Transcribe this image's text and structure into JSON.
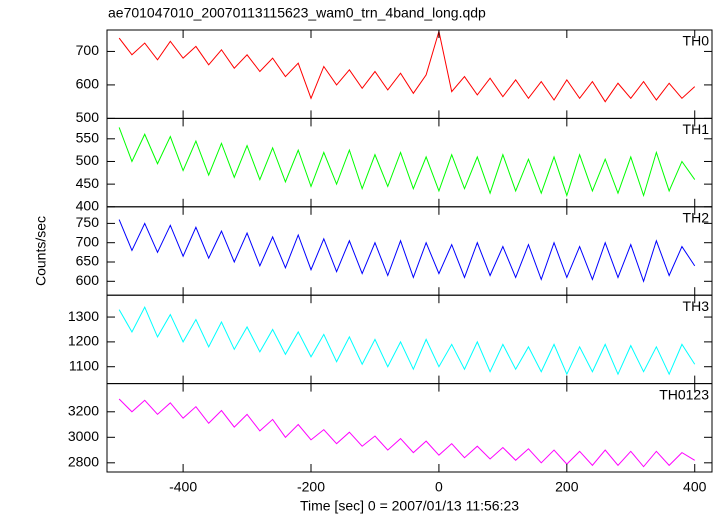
{
  "chart_data": [
    {
      "type": "line",
      "title": "ae701047010_20070113115623_wam0_trn_4band_long.qdp",
      "x": [
        -500,
        -480,
        -460,
        -440,
        -420,
        -400,
        -380,
        -360,
        -340,
        -320,
        -300,
        -280,
        -260,
        -240,
        -220,
        -200,
        -180,
        -160,
        -140,
        -120,
        -100,
        -80,
        -60,
        -40,
        -20,
        0,
        20,
        40,
        60,
        80,
        100,
        120,
        140,
        160,
        180,
        200,
        220,
        240,
        260,
        280,
        300,
        320,
        340,
        360,
        380,
        400
      ],
      "series": [
        {
          "name": "TH0",
          "color": "#ff0000",
          "values": [
            740,
            690,
            725,
            675,
            730,
            680,
            715,
            660,
            705,
            650,
            690,
            640,
            680,
            625,
            665,
            560,
            655,
            600,
            645,
            590,
            640,
            585,
            635,
            575,
            630,
            760,
            580,
            625,
            570,
            620,
            565,
            615,
            560,
            610,
            555,
            615,
            560,
            610,
            550,
            605,
            560,
            610,
            555,
            605,
            560,
            595
          ]
        }
      ],
      "xlim": [
        -519,
        427
      ],
      "ylim": [
        500,
        764
      ],
      "yticks": [
        500,
        600,
        700
      ]
    },
    {
      "type": "line",
      "x": [
        -500,
        -480,
        -460,
        -440,
        -420,
        -400,
        -380,
        -360,
        -340,
        -320,
        -300,
        -280,
        -260,
        -240,
        -220,
        -200,
        -180,
        -160,
        -140,
        -120,
        -100,
        -80,
        -60,
        -40,
        -20,
        0,
        20,
        40,
        60,
        80,
        100,
        120,
        140,
        160,
        180,
        200,
        220,
        240,
        260,
        280,
        300,
        320,
        340,
        360,
        380,
        400
      ],
      "series": [
        {
          "name": "TH1",
          "color": "#00ff00",
          "values": [
            575,
            500,
            560,
            495,
            555,
            480,
            545,
            470,
            540,
            465,
            535,
            460,
            530,
            455,
            525,
            445,
            520,
            450,
            525,
            440,
            515,
            445,
            520,
            440,
            510,
            435,
            515,
            440,
            510,
            430,
            515,
            435,
            505,
            430,
            510,
            425,
            515,
            435,
            505,
            430,
            510,
            425,
            520,
            435,
            500,
            460
          ]
        }
      ],
      "xlim": [
        -519,
        427
      ],
      "ylim": [
        400,
        595
      ],
      "yticks": [
        400,
        450,
        500,
        550
      ]
    },
    {
      "type": "line",
      "ylabel": "Counts/sec",
      "x": [
        -500,
        -480,
        -460,
        -440,
        -420,
        -400,
        -380,
        -360,
        -340,
        -320,
        -300,
        -280,
        -260,
        -240,
        -220,
        -200,
        -180,
        -160,
        -140,
        -120,
        -100,
        -80,
        -60,
        -40,
        -20,
        0,
        20,
        40,
        60,
        80,
        100,
        120,
        140,
        160,
        180,
        200,
        220,
        240,
        260,
        280,
        300,
        320,
        340,
        360,
        380,
        400
      ],
      "series": [
        {
          "name": "TH2",
          "color": "#0000ff",
          "values": [
            760,
            680,
            750,
            675,
            745,
            665,
            740,
            660,
            730,
            650,
            725,
            640,
            715,
            635,
            720,
            630,
            710,
            625,
            705,
            620,
            700,
            615,
            705,
            610,
            700,
            620,
            695,
            610,
            700,
            615,
            690,
            610,
            695,
            605,
            700,
            610,
            690,
            605,
            700,
            610,
            695,
            600,
            705,
            615,
            690,
            640
          ]
        }
      ],
      "xlim": [
        -519,
        427
      ],
      "ylim": [
        564,
        793
      ],
      "yticks": [
        600,
        650,
        700,
        750
      ]
    },
    {
      "type": "line",
      "x": [
        -500,
        -480,
        -460,
        -440,
        -420,
        -400,
        -380,
        -360,
        -340,
        -320,
        -300,
        -280,
        -260,
        -240,
        -220,
        -200,
        -180,
        -160,
        -140,
        -120,
        -100,
        -80,
        -60,
        -40,
        -20,
        0,
        20,
        40,
        60,
        80,
        100,
        120,
        140,
        160,
        180,
        200,
        220,
        240,
        260,
        280,
        300,
        320,
        340,
        360,
        380,
        400
      ],
      "series": [
        {
          "name": "TH3",
          "color": "#00ffff",
          "values": [
            1330,
            1240,
            1340,
            1220,
            1310,
            1200,
            1290,
            1180,
            1280,
            1170,
            1260,
            1160,
            1250,
            1150,
            1240,
            1140,
            1230,
            1120,
            1220,
            1110,
            1210,
            1100,
            1200,
            1090,
            1210,
            1100,
            1190,
            1090,
            1200,
            1080,
            1190,
            1090,
            1180,
            1080,
            1190,
            1070,
            1180,
            1080,
            1190,
            1070,
            1185,
            1080,
            1180,
            1070,
            1190,
            1110
          ]
        }
      ],
      "xlim": [
        -519,
        427
      ],
      "ylim": [
        1032,
        1388
      ],
      "yticks": [
        1100,
        1200,
        1300
      ]
    },
    {
      "type": "line",
      "xlabel": "Time [sec] 0 = 2007/01/13 11:56:23",
      "x": [
        -500,
        -480,
        -460,
        -440,
        -420,
        -400,
        -380,
        -360,
        -340,
        -320,
        -300,
        -280,
        -260,
        -240,
        -220,
        -200,
        -180,
        -160,
        -140,
        -120,
        -100,
        -80,
        -60,
        -40,
        -20,
        0,
        20,
        40,
        60,
        80,
        100,
        120,
        140,
        160,
        180,
        200,
        220,
        240,
        260,
        280,
        300,
        320,
        340,
        360,
        380,
        400
      ],
      "series": [
        {
          "name": "TH0123",
          "color": "#ff00ff",
          "values": [
            3300,
            3200,
            3290,
            3180,
            3270,
            3150,
            3240,
            3110,
            3210,
            3080,
            3180,
            3050,
            3140,
            3000,
            3100,
            2980,
            3060,
            2950,
            3040,
            2930,
            3010,
            2900,
            2990,
            2880,
            2970,
            2860,
            2950,
            2840,
            2930,
            2830,
            2920,
            2820,
            2910,
            2800,
            2900,
            2790,
            2890,
            2780,
            2900,
            2780,
            2890,
            2770,
            2890,
            2780,
            2880,
            2820
          ]
        }
      ],
      "xlim": [
        -519,
        427
      ],
      "ylim": [
        2728,
        3421
      ],
      "yticks": [
        2800,
        3000,
        3200
      ],
      "xticks": [
        -400,
        -200,
        0,
        200,
        400
      ]
    }
  ]
}
